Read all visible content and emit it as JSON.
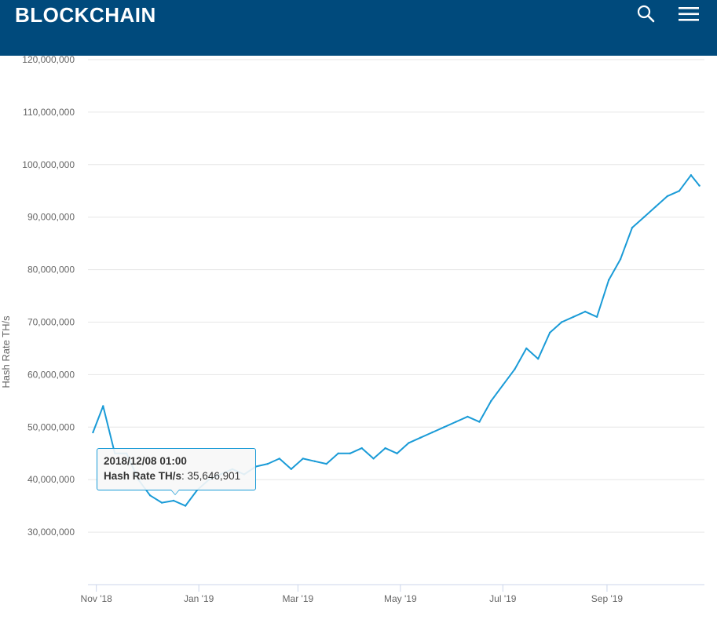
{
  "header": {
    "logo_text": "BLOCKCHAIN",
    "icons": {
      "search": "search-icon",
      "menu": "hamburger-menu-icon"
    },
    "background_color": "#004a7c",
    "logo_color": "#ffffff"
  },
  "tooltip": {
    "date": "2018/12/08 01:00",
    "label": "Hash Rate TH/s",
    "value": "35,646,901"
  },
  "chart_data": {
    "type": "line",
    "title": "",
    "xlabel": "",
    "ylabel": "Hash Rate TH/s",
    "ylim": [
      20000000,
      120000000
    ],
    "y_ticks": [
      30000000,
      40000000,
      50000000,
      60000000,
      70000000,
      80000000,
      90000000,
      100000000,
      110000000,
      120000000
    ],
    "y_tick_labels": [
      "30,000,000",
      "40,000,000",
      "50,000,000",
      "60,000,000",
      "70,000,000",
      "80,000,000",
      "90,000,000",
      "100,000,000",
      "110,000,000",
      "120,000,000"
    ],
    "x_range": [
      "2018-10-27",
      "2019-10-29"
    ],
    "x_ticks": [
      "2018-11-01",
      "2019-01-01",
      "2019-03-01",
      "2019-05-01",
      "2019-07-01",
      "2019-09-01"
    ],
    "x_tick_labels": [
      "Nov '18",
      "Jan '19",
      "Mar '19",
      "May '19",
      "Jul '19",
      "Sep '19"
    ],
    "grid": true,
    "line_color": "#1a9bd7",
    "series": [
      {
        "name": "Hash Rate TH/s",
        "x": [
          "2018-10-30",
          "2018-11-05",
          "2018-11-12",
          "2018-11-19",
          "2018-11-26",
          "2018-12-03",
          "2018-12-10",
          "2018-12-17",
          "2018-12-24",
          "2018-12-31",
          "2019-01-07",
          "2019-01-14",
          "2019-01-21",
          "2019-01-28",
          "2019-02-04",
          "2019-02-11",
          "2019-02-18",
          "2019-02-25",
          "2019-03-04",
          "2019-03-11",
          "2019-03-18",
          "2019-03-25",
          "2019-04-01",
          "2019-04-08",
          "2019-04-15",
          "2019-04-22",
          "2019-04-29",
          "2019-05-06",
          "2019-05-13",
          "2019-05-20",
          "2019-05-27",
          "2019-06-03",
          "2019-06-10",
          "2019-06-17",
          "2019-06-24",
          "2019-07-01",
          "2019-07-08",
          "2019-07-15",
          "2019-07-22",
          "2019-07-29",
          "2019-08-05",
          "2019-08-12",
          "2019-08-19",
          "2019-08-26",
          "2019-09-02",
          "2019-09-09",
          "2019-09-16",
          "2019-09-23",
          "2019-09-30",
          "2019-10-07",
          "2019-10-14",
          "2019-10-21",
          "2019-10-26"
        ],
        "y": [
          49000000,
          54000000,
          45000000,
          45000000,
          40000000,
          37000000,
          35600000,
          36000000,
          35000000,
          38000000,
          40000000,
          41000000,
          42000000,
          41000000,
          42500000,
          43000000,
          44000000,
          42000000,
          44000000,
          43500000,
          43000000,
          45000000,
          45000000,
          46000000,
          44000000,
          46000000,
          45000000,
          47000000,
          48000000,
          49000000,
          50000000,
          51000000,
          52000000,
          51000000,
          55000000,
          58000000,
          61000000,
          65000000,
          63000000,
          68000000,
          70000000,
          71000000,
          72000000,
          71000000,
          78000000,
          82000000,
          88000000,
          90000000,
          92000000,
          94000000,
          95000000,
          98000000,
          96000000
        ]
      }
    ]
  }
}
